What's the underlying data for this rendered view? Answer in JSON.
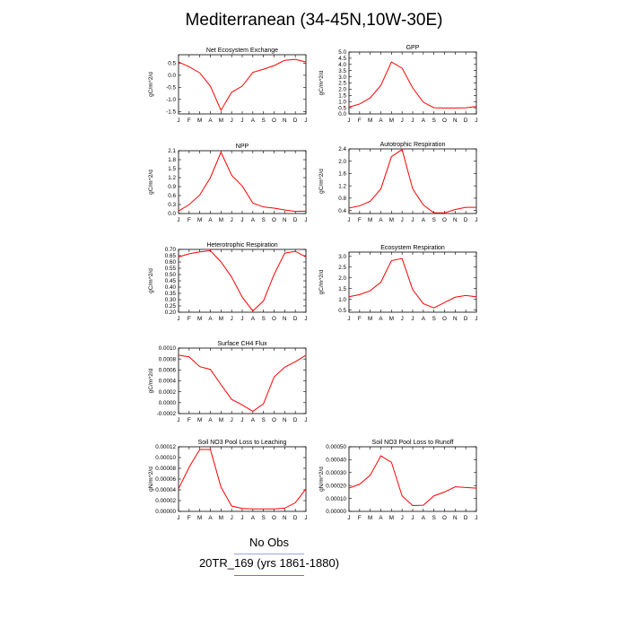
{
  "title": "Mediterranean (34-45N,10W-30E)",
  "legend": {
    "obs_label": "No Obs",
    "obs_color": "#9aa8d8",
    "case_label": "20TR_169 (yrs 1861-1880)",
    "case_color": "#ff4444"
  },
  "line_color": "#ff0000",
  "chart_data": [
    {
      "type": "line",
      "title": "Net Ecosystem Exchange",
      "ylabel": "gC/m^2/d",
      "x": [
        "J",
        "F",
        "M",
        "A",
        "M",
        "J",
        "J",
        "A",
        "S",
        "O",
        "N",
        "D",
        "J"
      ],
      "ylim": [
        -1.6,
        0.85
      ],
      "yticks": [
        -1.5,
        -1.0,
        -0.5,
        0.0,
        0.5
      ],
      "ytick_labels": [
        "-1.5",
        "-1.0",
        "-0.5",
        "0.0",
        "0.5"
      ],
      "series": [
        {
          "values": [
            0.55,
            0.35,
            0.1,
            -0.45,
            -1.45,
            -0.7,
            -0.45,
            0.12,
            0.25,
            0.4,
            0.62,
            0.66,
            0.55
          ]
        }
      ]
    },
    {
      "type": "line",
      "title": "GPP",
      "ylabel": "gC/m^2/d",
      "x": [
        "J",
        "F",
        "M",
        "A",
        "M",
        "J",
        "J",
        "A",
        "S",
        "O",
        "N",
        "D",
        "J"
      ],
      "ylim": [
        0.0,
        5.0
      ],
      "yticks": [
        0.0,
        0.5,
        1.0,
        1.5,
        2.0,
        2.5,
        3.0,
        3.5,
        4.0,
        4.5,
        5.0
      ],
      "ytick_labels": [
        "0.0",
        "0.5",
        "1.0",
        "1.5",
        "2.0",
        "2.5",
        "3.0",
        "3.5",
        "4.0",
        "4.5",
        "5.0"
      ],
      "series": [
        {
          "values": [
            0.55,
            0.8,
            1.3,
            2.3,
            4.2,
            3.7,
            2.1,
            0.95,
            0.5,
            0.48,
            0.48,
            0.5,
            0.6
          ]
        }
      ]
    },
    {
      "type": "line",
      "title": "NPP",
      "ylabel": "gC/m^2/d",
      "x": [
        "J",
        "F",
        "M",
        "A",
        "M",
        "J",
        "J",
        "A",
        "S",
        "O",
        "N",
        "D",
        "J"
      ],
      "ylim": [
        0.0,
        2.1
      ],
      "yticks": [
        0.0,
        0.3,
        0.6,
        0.9,
        1.2,
        1.5,
        1.8,
        2.1
      ],
      "ytick_labels": [
        "0.0",
        "0.3",
        "0.6",
        "0.9",
        "1.2",
        "1.5",
        "1.8",
        "2.1"
      ],
      "series": [
        {
          "values": [
            0.08,
            0.3,
            0.62,
            1.2,
            2.05,
            1.28,
            0.92,
            0.35,
            0.22,
            0.18,
            0.12,
            0.07,
            0.08
          ]
        }
      ]
    },
    {
      "type": "line",
      "title": "Autotrophic Respiration",
      "ylabel": "gC/m^2/d",
      "x": [
        "J",
        "F",
        "M",
        "A",
        "M",
        "J",
        "J",
        "A",
        "S",
        "O",
        "N",
        "D",
        "J"
      ],
      "ylim": [
        0.3,
        2.4
      ],
      "yticks": [
        0.4,
        0.8,
        1.2,
        1.6,
        2.0,
        2.4
      ],
      "ytick_labels": [
        "0.4",
        "0.8",
        "1.2",
        "1.6",
        "2.0",
        "2.4"
      ],
      "series": [
        {
          "values": [
            0.48,
            0.55,
            0.7,
            1.1,
            2.15,
            2.38,
            1.1,
            0.58,
            0.32,
            0.32,
            0.43,
            0.5,
            0.5
          ]
        }
      ]
    },
    {
      "type": "line",
      "title": "Heterotrophic Respiration",
      "ylabel": "gC/m^2/d",
      "x": [
        "J",
        "F",
        "M",
        "A",
        "M",
        "J",
        "J",
        "A",
        "S",
        "O",
        "N",
        "D",
        "J"
      ],
      "ylim": [
        0.2,
        0.7
      ],
      "yticks": [
        0.2,
        0.25,
        0.3,
        0.35,
        0.4,
        0.45,
        0.5,
        0.55,
        0.6,
        0.65,
        0.7
      ],
      "ytick_labels": [
        "0.20",
        "0.25",
        "0.30",
        "0.35",
        "0.40",
        "0.45",
        "0.50",
        "0.55",
        "0.60",
        "0.65",
        "0.70"
      ],
      "series": [
        {
          "values": [
            0.64,
            0.665,
            0.68,
            0.69,
            0.6,
            0.48,
            0.32,
            0.21,
            0.29,
            0.5,
            0.67,
            0.685,
            0.64
          ]
        }
      ]
    },
    {
      "type": "line",
      "title": "Ecosystem Respiration",
      "ylabel": "gC/m^2/d",
      "x": [
        "J",
        "F",
        "M",
        "A",
        "M",
        "J",
        "J",
        "A",
        "S",
        "O",
        "N",
        "D",
        "J"
      ],
      "ylim": [
        0.4,
        3.2
      ],
      "yticks": [
        0.5,
        1.0,
        1.5,
        2.0,
        2.5,
        3.0
      ],
      "ytick_labels": [
        "0.5",
        "1.0",
        "1.5",
        "2.0",
        "2.5",
        "3.0"
      ],
      "series": [
        {
          "values": [
            1.12,
            1.22,
            1.4,
            1.8,
            2.8,
            2.9,
            1.45,
            0.8,
            0.6,
            0.85,
            1.1,
            1.18,
            1.12
          ]
        }
      ]
    },
    {
      "type": "line",
      "title": "Surface CH4 Flux",
      "ylabel": "gC/m^2/d",
      "x": [
        "J",
        "F",
        "M",
        "A",
        "M",
        "J",
        "J",
        "A",
        "S",
        "O",
        "N",
        "D",
        "J"
      ],
      "ylim": [
        -0.0002,
        0.001
      ],
      "yticks": [
        -0.0002,
        0.0,
        0.0002,
        0.0004,
        0.0006,
        0.0008,
        0.001
      ],
      "ytick_labels": [
        "-0.0002",
        "0.0000",
        "0.0002",
        "0.0004",
        "0.0006",
        "0.0008",
        "0.0010"
      ],
      "series": [
        {
          "values": [
            0.00087,
            0.00084,
            0.00066,
            0.00061,
            0.00033,
            6e-05,
            -4e-05,
            -0.00016,
            -2e-05,
            0.00047,
            0.00065,
            0.00075,
            0.00087
          ]
        }
      ]
    },
    {
      "type": "line",
      "title": "Soil NO3 Pool Loss to Leaching",
      "ylabel": "gN/m^2/d",
      "x": [
        "J",
        "F",
        "M",
        "A",
        "M",
        "J",
        "J",
        "A",
        "S",
        "O",
        "N",
        "D",
        "J"
      ],
      "ylim": [
        0.0,
        0.00012
      ],
      "yticks": [
        0.0,
        2e-05,
        4e-05,
        6e-05,
        8e-05,
        0.0001,
        0.00012
      ],
      "ytick_labels": [
        "0.00000",
        "0.00002",
        "0.00004",
        "0.00006",
        "0.00008",
        "0.00010",
        "0.00012"
      ],
      "series": [
        {
          "values": [
            4.2e-05,
            8.2e-05,
            0.000115,
            0.000115,
            4.5e-05,
            1e-05,
            5.5e-06,
            4.5e-06,
            4.5e-06,
            4.5e-06,
            6e-06,
            1.6e-05,
            4.2e-05
          ]
        }
      ]
    },
    {
      "type": "line",
      "title": "Soil NO3 Pool Loss to Runoff",
      "ylabel": "gN/m^2/d",
      "x": [
        "J",
        "F",
        "M",
        "A",
        "M",
        "J",
        "J",
        "A",
        "S",
        "O",
        "N",
        "D",
        "J"
      ],
      "ylim": [
        0.0,
        0.0005
      ],
      "yticks": [
        0.0,
        0.0001,
        0.0002,
        0.0003,
        0.0004,
        0.0005
      ],
      "ytick_labels": [
        "0.00000",
        "0.00010",
        "0.00020",
        "0.00030",
        "0.00040",
        "0.00050"
      ],
      "series": [
        {
          "values": [
            0.00018,
            0.00021,
            0.00028,
            0.00043,
            0.00038,
            0.00012,
            4.5e-05,
            4.8e-05,
            0.00012,
            0.00015,
            0.00019,
            0.000185,
            0.00018
          ]
        }
      ]
    }
  ]
}
